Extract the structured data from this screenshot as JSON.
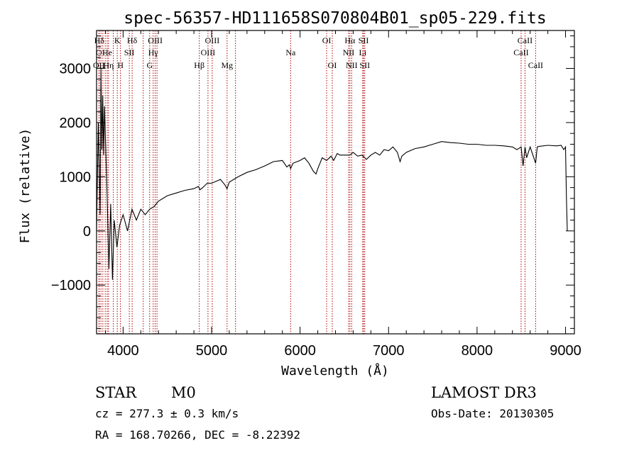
{
  "chart_data": {
    "type": "line",
    "title": "spec-56357-HD111658S070804B01_sp05-229.fits",
    "xlabel": "Wavelength (Å)",
    "ylabel": "Flux (relative)",
    "xlim": [
      3700,
      9100
    ],
    "ylim": [
      -1900,
      3700
    ],
    "xticks": [
      4000,
      5000,
      6000,
      7000,
      8000,
      9000
    ],
    "yticks": [
      -1000,
      0,
      1000,
      2000,
      3000
    ],
    "grid": false,
    "spectral_lines": [
      {
        "label": "Hδ",
        "wavelength": 3730,
        "row": 0
      },
      {
        "label": "K",
        "wavelength": 3934,
        "row": 0
      },
      {
        "label": "Hδ",
        "wavelength": 4102,
        "row": 0
      },
      {
        "label": "OIII",
        "wavelength": 4363,
        "row": 0
      },
      {
        "label": "OIII",
        "wavelength": 5007,
        "row": 0
      },
      {
        "label": "OI",
        "wavelength": 6300,
        "row": 0
      },
      {
        "label": "Hα",
        "wavelength": 6563,
        "row": 0
      },
      {
        "label": "SII",
        "wavelength": 6717,
        "row": 0
      },
      {
        "label": "CaII",
        "wavelength": 8542,
        "row": 0
      },
      {
        "label": "O",
        "wavelength": 3727,
        "row": 1
      },
      {
        "label": "He",
        "wavelength": 3820,
        "row": 1
      },
      {
        "label": "SII",
        "wavelength": 4070,
        "row": 1
      },
      {
        "label": "Hγ",
        "wavelength": 4340,
        "row": 1
      },
      {
        "label": "OIII",
        "wavelength": 4959,
        "row": 1
      },
      {
        "label": "Na",
        "wavelength": 5893,
        "row": 1
      },
      {
        "label": "NII",
        "wavelength": 6548,
        "row": 1
      },
      {
        "label": "Li",
        "wavelength": 6708,
        "row": 1
      },
      {
        "label": "CaII",
        "wavelength": 8498,
        "row": 1
      },
      {
        "label": "OII",
        "wavelength": 3727,
        "row": 2
      },
      {
        "label": "Hη",
        "wavelength": 3835,
        "row": 2
      },
      {
        "label": "H",
        "wavelength": 3970,
        "row": 2
      },
      {
        "label": "G",
        "wavelength": 4300,
        "row": 2
      },
      {
        "label": "Hβ",
        "wavelength": 4861,
        "row": 2
      },
      {
        "label": "Mg",
        "wavelength": 5175,
        "row": 2
      },
      {
        "label": "OI",
        "wavelength": 6364,
        "row": 2
      },
      {
        "label": "NII",
        "wavelength": 6583,
        "row": 2
      },
      {
        "label": "SII",
        "wavelength": 6731,
        "row": 2
      },
      {
        "label": "CaII",
        "wavelength": 8662,
        "row": 2
      }
    ],
    "extra_line_wavelengths": [
      3750,
      3771,
      3798,
      3889,
      4227,
      4383,
      5270
    ],
    "series": [
      {
        "name": "flux",
        "x": [
          3700,
          3720,
          3740,
          3750,
          3760,
          3770,
          3780,
          3790,
          3800,
          3820,
          3840,
          3860,
          3880,
          3900,
          3930,
          3960,
          4000,
          4050,
          4100,
          4150,
          4200,
          4250,
          4300,
          4350,
          4400,
          4500,
          4600,
          4700,
          4800,
          4850,
          4870,
          4900,
          4950,
          5000,
          5100,
          5150,
          5175,
          5200,
          5300,
          5400,
          5500,
          5600,
          5700,
          5800,
          5850,
          5880,
          5893,
          5920,
          6000,
          6050,
          6100,
          6150,
          6180,
          6200,
          6250,
          6300,
          6350,
          6380,
          6420,
          6450,
          6500,
          6563,
          6600,
          6650,
          6700,
          6750,
          6800,
          6850,
          6900,
          6950,
          7000,
          7050,
          7100,
          7130,
          7150,
          7200,
          7300,
          7400,
          7500,
          7600,
          7700,
          7800,
          7900,
          8000,
          8100,
          8200,
          8300,
          8400,
          8450,
          8498,
          8520,
          8542,
          8560,
          8600,
          8662,
          8680,
          8700,
          8800,
          8900,
          8950,
          8980,
          9000,
          9010,
          9020
        ],
        "values": [
          0,
          2000,
          300,
          3000,
          1500,
          2500,
          1400,
          2300,
          1700,
          600,
          -700,
          500,
          -900,
          200,
          -300,
          100,
          300,
          0,
          400,
          200,
          400,
          300,
          400,
          450,
          550,
          650,
          700,
          750,
          780,
          820,
          760,
          800,
          880,
          880,
          950,
          850,
          780,
          900,
          1000,
          1080,
          1130,
          1200,
          1280,
          1300,
          1180,
          1220,
          1150,
          1250,
          1300,
          1350,
          1250,
          1100,
          1050,
          1150,
          1350,
          1300,
          1380,
          1300,
          1430,
          1400,
          1400,
          1400,
          1450,
          1380,
          1400,
          1320,
          1400,
          1450,
          1400,
          1500,
          1480,
          1550,
          1450,
          1280,
          1380,
          1450,
          1520,
          1550,
          1600,
          1650,
          1630,
          1620,
          1600,
          1600,
          1580,
          1580,
          1570,
          1550,
          1500,
          1550,
          1200,
          1550,
          1350,
          1550,
          1250,
          1550,
          1560,
          1580,
          1570,
          1580,
          1500,
          1550,
          600,
          0
        ]
      }
    ]
  },
  "footer": {
    "object_class": "STAR",
    "subclass": "M0",
    "survey": "LAMOST DR3",
    "redshift": "cz = 277.3 ± 0.3 km/s",
    "obs_date": "Obs-Date: 20130305",
    "coords": "RA = 168.70266, DEC =  -8.22392"
  }
}
